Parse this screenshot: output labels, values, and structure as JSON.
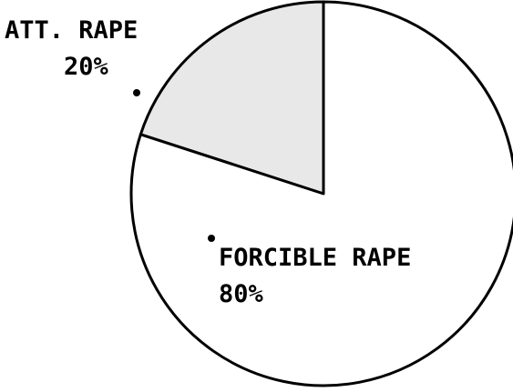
{
  "chart_data": {
    "type": "pie",
    "categories": [
      "ATT. RAPE",
      "FORCIBLE RAPE"
    ],
    "values": [
      20,
      80
    ],
    "value_labels": [
      "20%",
      "80%"
    ],
    "colors": [
      "#e8e8e8",
      "#ffffff"
    ]
  }
}
